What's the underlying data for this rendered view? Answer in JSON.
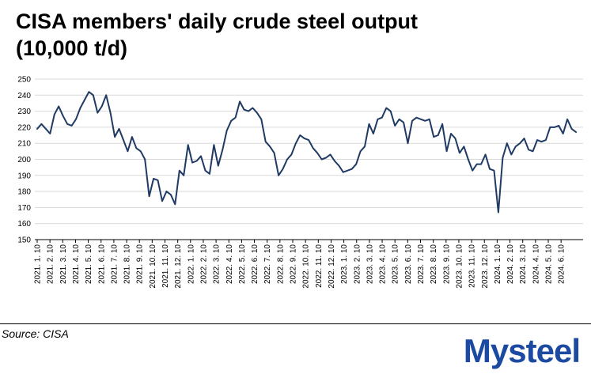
{
  "title_line1": "CISA members' daily crude steel output",
  "title_line2": "(10,000 t/d)",
  "source": "Source: CISA",
  "logo": "Mysteel",
  "colors": {
    "line": "#1f3a63",
    "grid": "#d9d9d9",
    "logo": "#1b4aa0",
    "logo_dot": "#e02020"
  },
  "chart_data": {
    "type": "line",
    "title": "CISA members' daily crude steel output (10,000 t/d)",
    "ylim": [
      150,
      250
    ],
    "yticks": [
      150,
      160,
      170,
      180,
      190,
      200,
      210,
      220,
      230,
      240,
      250
    ],
    "grid": "horizontal",
    "x_labels": [
      "2021. 1. 10",
      "2021. 2. 10",
      "2021. 3. 10",
      "2021. 4. 10",
      "2021. 5. 10",
      "2021. 6. 10",
      "2021. 7. 10",
      "2021. 8. 10",
      "2021. 9. 10",
      "2021. 10. 10",
      "2021. 11. 10",
      "2021. 12. 10",
      "2022. 1. 10",
      "2022. 2. 10",
      "2022. 3. 10",
      "2022. 4. 10",
      "2022. 5. 10",
      "2022. 6. 10",
      "2022. 7. 10",
      "2022. 8. 10",
      "2022. 9. 10",
      "2022. 10. 10",
      "2022. 11. 10",
      "2022. 12. 10",
      "2023. 1. 10",
      "2023. 2. 10",
      "2023. 3. 10",
      "2023. 4. 10",
      "2023. 5. 10",
      "2023. 6. 10",
      "2023. 7. 10",
      "2023. 8. 10",
      "2023. 9. 10",
      "2023. 10. 10",
      "2023. 11. 10",
      "2023. 12. 10",
      "2024. 1. 10",
      "2024. 2. 10",
      "2024. 3. 10",
      "2024. 4. 10",
      "2024. 5. 10",
      "2024. 6. 10"
    ],
    "series": [
      {
        "values": [
          219,
          222,
          219,
          216,
          228,
          233,
          227,
          222,
          221,
          225,
          232,
          237,
          242,
          240,
          229,
          233,
          240,
          229,
          214,
          219,
          212,
          205,
          214,
          207,
          205,
          200,
          177,
          188,
          187,
          174,
          180,
          178,
          172,
          193,
          190,
          209,
          198,
          199,
          202,
          193,
          191,
          209,
          196,
          206,
          218,
          224,
          226,
          236,
          231,
          230,
          232,
          229,
          225,
          211,
          208,
          204,
          190,
          194,
          200,
          203,
          210,
          215,
          213,
          212,
          207,
          204,
          200,
          201,
          203,
          199,
          196,
          192,
          193,
          194,
          197,
          205,
          208,
          222,
          216,
          225,
          226,
          232,
          230,
          221,
          225,
          223,
          210,
          224,
          226,
          225,
          224,
          225,
          214,
          215,
          222,
          205,
          216,
          213,
          204,
          208,
          200,
          193,
          197,
          197,
          203,
          194,
          193,
          167,
          201,
          210,
          203,
          208,
          210,
          213,
          206,
          205,
          212,
          211,
          212,
          220,
          220,
          221,
          216,
          225,
          219,
          217
        ]
      }
    ]
  }
}
